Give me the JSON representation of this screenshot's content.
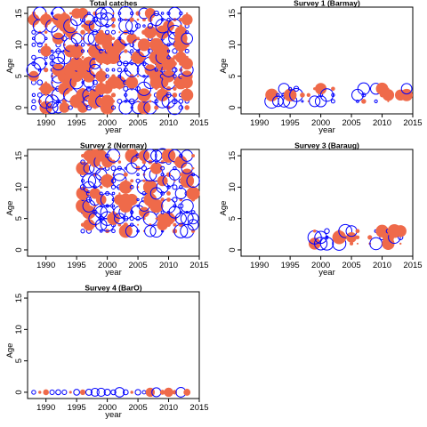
{
  "colors": {
    "positive": "#ef6a4a",
    "zero": "#0000ff",
    "frame": "#000000"
  },
  "chart_data": [
    {
      "type": "scatter",
      "title": "Total catches",
      "xlabel": "year",
      "ylabel": "Age",
      "xlim": [
        1987,
        2015
      ],
      "ylim": [
        -1,
        16
      ],
      "xticks": [
        "1990",
        "1995",
        "2000",
        "2005",
        "2010",
        "2015"
      ],
      "yticks": [
        "0",
        "5",
        "10",
        "15"
      ],
      "years": [
        1988,
        1989,
        1990,
        1991,
        1992,
        1993,
        1994,
        1995,
        1996,
        1997,
        1998,
        1999,
        2000,
        2001,
        2002,
        2003,
        2004,
        2005,
        2006,
        2007,
        2008,
        2009,
        2010,
        2011,
        2012,
        2013
      ],
      "ages": [
        0,
        1,
        2,
        3,
        4,
        5,
        6,
        7,
        8,
        9,
        10,
        11,
        12,
        13,
        14,
        15
      ],
      "residual_pattern": "dense"
    },
    {
      "type": "scatter",
      "title": "Survey 1 (Barmay)",
      "xlabel": "year",
      "ylabel": "Age",
      "xlim": [
        1987,
        2015
      ],
      "ylim": [
        -1,
        16
      ],
      "xticks": [
        "1990",
        "1995",
        "2000",
        "2005",
        "2010",
        "2015"
      ],
      "yticks": [
        "0",
        "5",
        "10",
        "15"
      ],
      "years": [
        1992,
        1993,
        1994,
        1995,
        1996,
        1997,
        1998,
        1999,
        2000,
        2001,
        2002,
        2006,
        2007,
        2009,
        2010,
        2011,
        2012,
        2013,
        2014
      ],
      "ages": [
        1,
        2,
        3
      ],
      "residual_pattern": "sparse"
    },
    {
      "type": "scatter",
      "title": "Survey 2 (Normay)",
      "xlabel": "year",
      "ylabel": "Age",
      "xlim": [
        1987,
        2015
      ],
      "ylim": [
        -1,
        16
      ],
      "xticks": [
        "1990",
        "1995",
        "2000",
        "2005",
        "2010",
        "2015"
      ],
      "yticks": [
        "0",
        "5",
        "10",
        "15"
      ],
      "years": [
        1996,
        1997,
        1998,
        1999,
        2000,
        2001,
        2002,
        2003,
        2004,
        2005,
        2006,
        2007,
        2008,
        2009,
        2010,
        2011,
        2012,
        2013,
        2014
      ],
      "ages": [
        3,
        4,
        5,
        6,
        7,
        8,
        9,
        10,
        11,
        12,
        13,
        14,
        15
      ],
      "residual_pattern": "dense"
    },
    {
      "type": "scatter",
      "title": "Survey 3 (Baraug)",
      "xlabel": "year",
      "ylabel": "Age",
      "xlim": [
        1987,
        2015
      ],
      "ylim": [
        -1,
        16
      ],
      "xticks": [
        "1990",
        "1995",
        "2000",
        "2005",
        "2010",
        "2015"
      ],
      "yticks": [
        "0",
        "5",
        "10",
        "15"
      ],
      "years": [
        1999,
        2000,
        2001,
        2003,
        2004,
        2005,
        2006,
        2008,
        2009,
        2010,
        2011,
        2012,
        2013
      ],
      "ages": [
        1,
        2,
        3
      ],
      "residual_pattern": "sparse"
    },
    {
      "type": "scatter",
      "title": "Survey 4 (BarO)",
      "xlabel": "year",
      "ylabel": "Age",
      "xlim": [
        1987,
        2015
      ],
      "ylim": [
        -1,
        16
      ],
      "xticks": [
        "1990",
        "1995",
        "2000",
        "2005",
        "2010",
        "2015"
      ],
      "yticks": [
        "0",
        "5",
        "10",
        "15"
      ],
      "years": [
        1988,
        1989,
        1990,
        1991,
        1992,
        1993,
        1994,
        1995,
        1996,
        1997,
        1998,
        1999,
        2000,
        2001,
        2002,
        2003,
        2004,
        2005,
        2006,
        2007,
        2008,
        2009,
        2010,
        2011,
        2012,
        2013
      ],
      "ages": [
        0
      ],
      "residual_pattern": "single"
    }
  ]
}
